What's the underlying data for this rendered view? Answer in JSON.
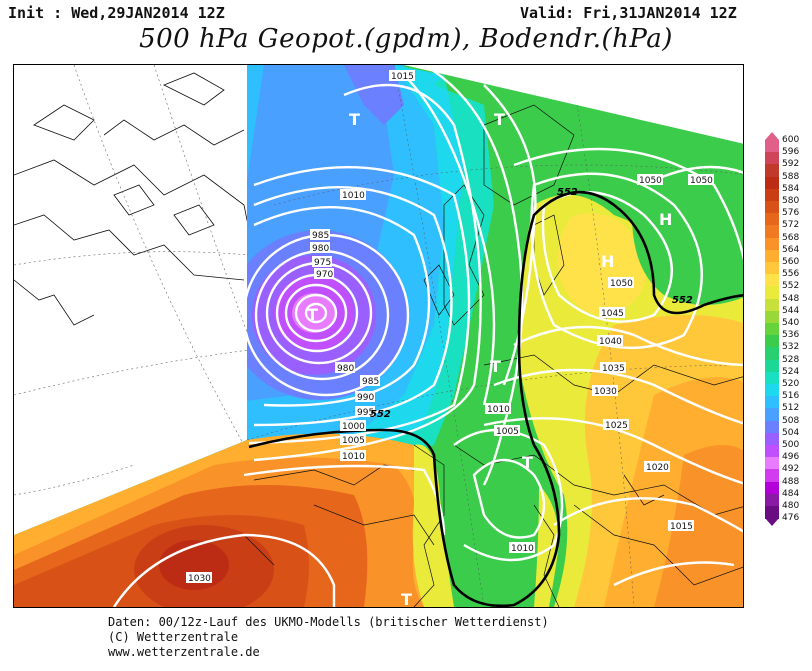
{
  "header": {
    "init": "Init : Wed,29JAN2014 12Z",
    "valid": "Valid: Fri,31JAN2014 12Z",
    "title": "500 hPa Geopot.(gpdm), Bodendr.(hPa)"
  },
  "footer": {
    "line1": "Daten: 00/12z-Lauf des UKMO-Modells (britischer Wetterdienst)",
    "line2": "(C) Wetterzentrale",
    "line3": "www.wetterzentrale.de"
  },
  "colors": {
    "colorbar": [
      "#6a0d83",
      "#8a1aa6",
      "#b400d8",
      "#d23cf0",
      "#e87cff",
      "#c050ff",
      "#9a60ff",
      "#6a80ff",
      "#4aa0ff",
      "#2fbfff",
      "#1ed8ee",
      "#18e0c0",
      "#1cd896",
      "#28d070",
      "#3ccc4c",
      "#66d23c",
      "#9ad83a",
      "#c8e03a",
      "#eaea3a",
      "#ffe24a",
      "#ffc83a",
      "#ffae30",
      "#f99228",
      "#f07a22",
      "#e6661c",
      "#d85218",
      "#ca3e16",
      "#bc2c14",
      "#c0392b",
      "#d0445a",
      "#e0608a"
    ]
  },
  "legend": {
    "labels": [
      "600",
      "596",
      "592",
      "588",
      "584",
      "580",
      "576",
      "572",
      "568",
      "564",
      "560",
      "556",
      "552",
      "548",
      "544",
      "540",
      "536",
      "532",
      "528",
      "524",
      "520",
      "516",
      "512",
      "508",
      "504",
      "500",
      "496",
      "492",
      "488",
      "484",
      "480",
      "476"
    ]
  },
  "map": {
    "isobar_labels": [
      {
        "text": "1015"
      },
      {
        "text": "1010"
      },
      {
        "text": "985"
      },
      {
        "text": "980"
      },
      {
        "text": "975"
      },
      {
        "text": "970"
      },
      {
        "text": "980"
      },
      {
        "text": "985"
      },
      {
        "text": "990"
      },
      {
        "text": "995"
      },
      {
        "text": "1000"
      },
      {
        "text": "1005"
      },
      {
        "text": "1010"
      },
      {
        "text": "1010"
      },
      {
        "text": "1005"
      },
      {
        "text": "1010"
      },
      {
        "text": "1030"
      },
      {
        "text": "1050"
      },
      {
        "text": "1050"
      },
      {
        "text": "1050"
      },
      {
        "text": "1045"
      },
      {
        "text": "1040"
      },
      {
        "text": "1035"
      },
      {
        "text": "1030"
      },
      {
        "text": "1025"
      },
      {
        "text": "1020"
      },
      {
        "text": "1015"
      }
    ],
    "height_labels": [
      "552",
      "552",
      "552"
    ],
    "pressure_centers": [
      {
        "type": "T"
      },
      {
        "type": "T"
      },
      {
        "type": "T"
      },
      {
        "type": "T"
      },
      {
        "type": "T"
      },
      {
        "type": "T"
      },
      {
        "type": "H"
      },
      {
        "type": "H"
      }
    ]
  }
}
